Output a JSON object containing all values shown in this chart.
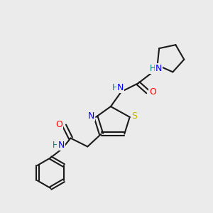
{
  "bg_color": "#ebebeb",
  "bond_color": "#1a1a1a",
  "N_color": "#0000ff",
  "O_color": "#ff0000",
  "S_color": "#c8b400",
  "H_color": "#008080",
  "line_width": 1.5,
  "font_size": 9.0,
  "fig_w": 3.0,
  "fig_h": 3.0,
  "dpi": 100,
  "xlim": [
    0,
    10
  ],
  "ylim": [
    0,
    10
  ]
}
